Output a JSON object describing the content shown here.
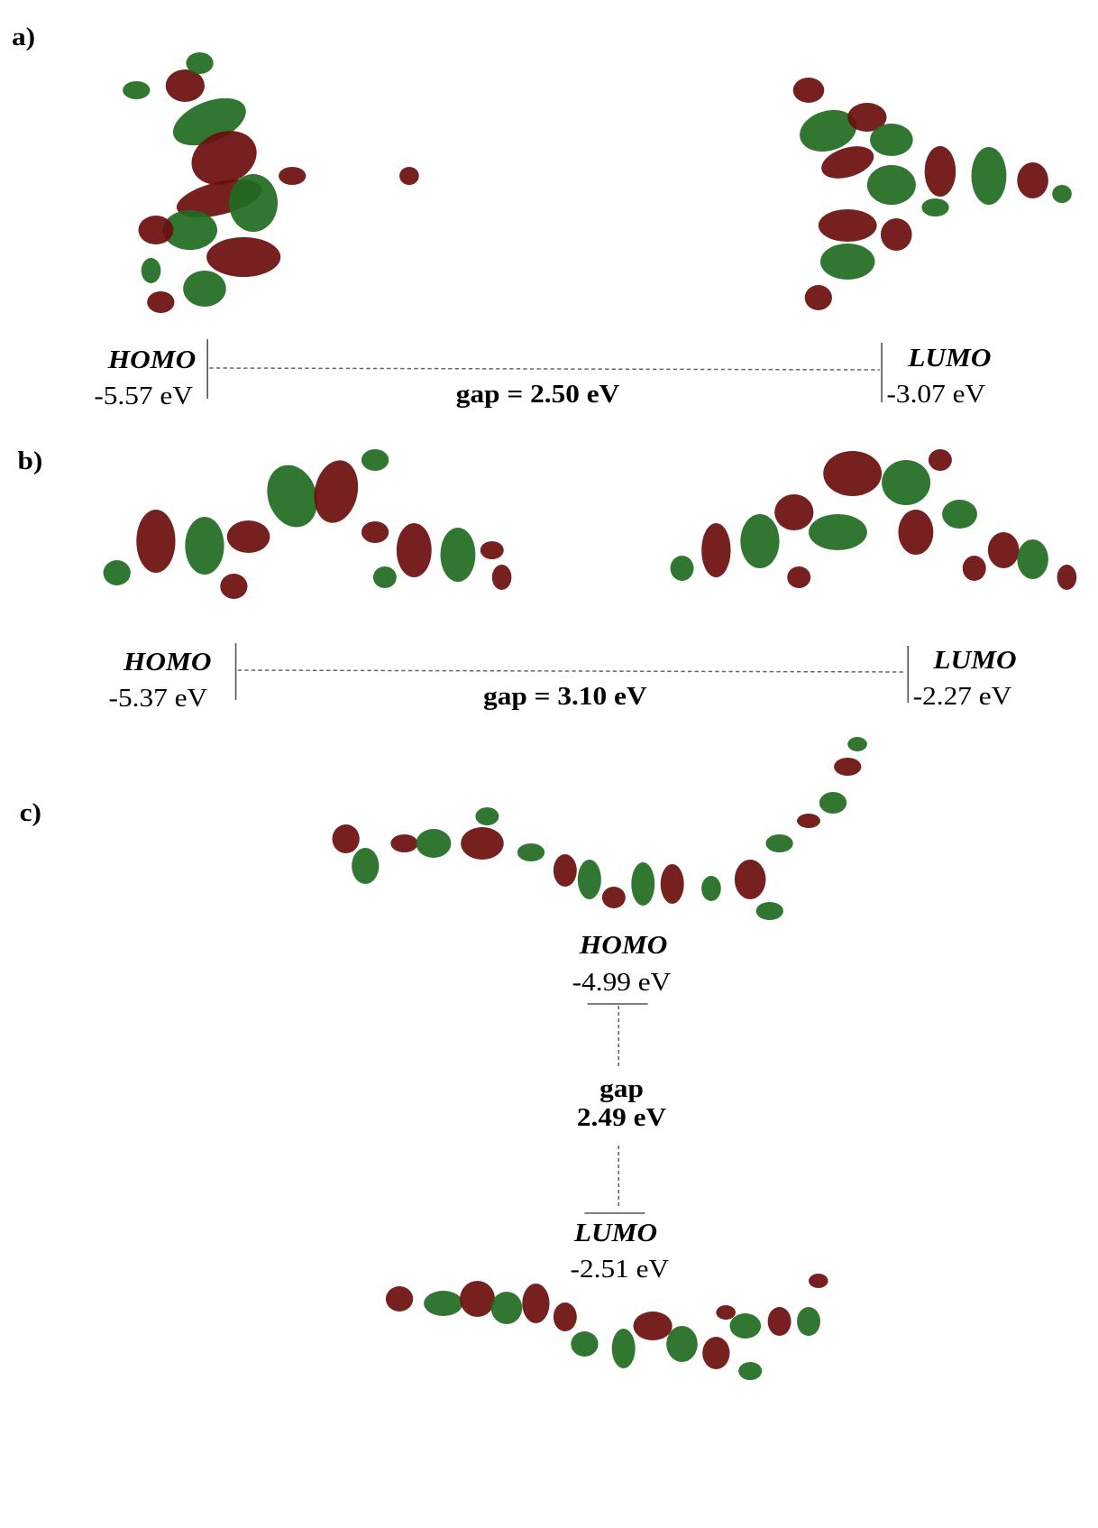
{
  "panels": [
    {
      "label": "a)",
      "homo": {
        "name": "HOMO",
        "energy": "-5.57 eV"
      },
      "lumo": {
        "name": "LUMO",
        "energy": "-3.07 eV"
      },
      "gap": [
        "gap = 2.50 eV"
      ]
    },
    {
      "label": "b)",
      "homo": {
        "name": "HOMO",
        "energy": "-5.37 eV"
      },
      "lumo": {
        "name": "LUMO",
        "energy": "-2.27 eV"
      },
      "gap": [
        "gap = 3.10 eV"
      ]
    },
    {
      "label": "c)",
      "homo": {
        "name": "HOMO",
        "energy": "-4.99 eV"
      },
      "lumo": {
        "name": "LUMO",
        "energy": "-2.51 eV"
      },
      "gap": [
        "gap",
        "2.49 eV"
      ]
    }
  ]
}
